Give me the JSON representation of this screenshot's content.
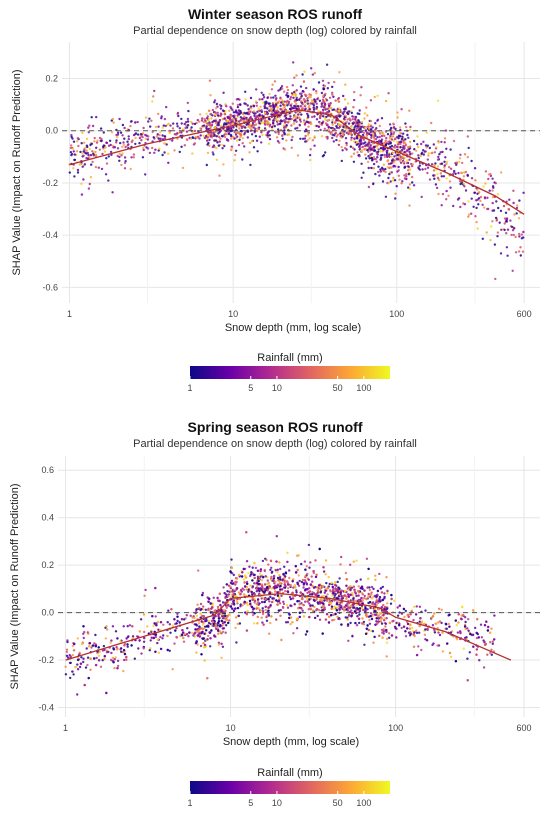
{
  "colors": {
    "palette": [
      "#0d0887",
      "#6a00a8",
      "#b12a90",
      "#e16462",
      "#fca636",
      "#f0f921"
    ],
    "trend": "#b5302f",
    "zero_line": "#555555"
  },
  "chart_data": [
    {
      "type": "scatter",
      "title": "Winter season ROS runoff",
      "subtitle": "Partial dependence on snow depth (log) colored by rainfall",
      "xlabel": "Snow depth (mm, log scale)",
      "ylabel": "SHAP Value (Impact on Runoff Prediction)",
      "x_scale": "log",
      "xlim": [
        0.9,
        750
      ],
      "ylim": [
        -0.66,
        0.34
      ],
      "x_ticks": [
        1,
        10,
        100,
        600
      ],
      "x_tick_labels": [
        "1",
        "10",
        "100",
        "600"
      ],
      "y_ticks": [
        -0.6,
        -0.4,
        -0.2,
        0.0,
        0.2
      ],
      "y_tick_labels": [
        "-0.6",
        "-0.4",
        "-0.2",
        "0.0",
        "0.2"
      ],
      "reference_line": {
        "y": 0.0,
        "style": "dashed"
      },
      "trend_line": {
        "x": [
          1,
          3,
          10,
          25,
          40,
          60,
          100,
          200,
          400,
          600
        ],
        "y": [
          -0.13,
          -0.05,
          0.02,
          0.08,
          0.06,
          -0.02,
          -0.08,
          -0.16,
          -0.25,
          -0.32
        ]
      },
      "scatter_profile": {
        "x": [
          1,
          2,
          5,
          10,
          20,
          30,
          45,
          70,
          100,
          200,
          400,
          600
        ],
        "y_center": [
          -0.1,
          -0.05,
          -0.01,
          0.02,
          0.07,
          0.1,
          0.04,
          -0.05,
          -0.08,
          -0.14,
          -0.3,
          -0.4
        ],
        "spread": [
          0.1,
          0.1,
          0.08,
          0.08,
          0.09,
          0.11,
          0.1,
          0.1,
          0.1,
          0.12,
          0.13,
          0.12
        ]
      },
      "colorbar": {
        "title": "Rainfall (mm)",
        "scale": "log",
        "range": [
          1,
          200
        ],
        "ticks": [
          1,
          5,
          10,
          50,
          100
        ],
        "tick_labels": [
          "1",
          "5",
          "10",
          "50",
          "100"
        ]
      }
    },
    {
      "type": "scatter",
      "title": "Spring season ROS runoff",
      "subtitle": "Partial dependence on snow depth (log) colored by rainfall",
      "xlabel": "Snow depth (mm, log scale)",
      "ylabel": "SHAP Value (Impact on Runoff Prediction)",
      "x_scale": "log",
      "xlim": [
        0.9,
        750
      ],
      "ylim": [
        -0.44,
        0.66
      ],
      "x_ticks": [
        1,
        10,
        100,
        600
      ],
      "x_tick_labels": [
        "1",
        "10",
        "100",
        "600"
      ],
      "y_ticks": [
        -0.4,
        -0.2,
        0.0,
        0.2,
        0.4,
        0.6
      ],
      "y_tick_labels": [
        "-0.4",
        "-0.2",
        "0.0",
        "0.2",
        "0.4",
        "0.6"
      ],
      "reference_line": {
        "y": 0.0,
        "style": "dashed"
      },
      "trend_line": {
        "x": [
          1,
          3,
          8,
          10,
          20,
          40,
          80,
          100,
          200,
          500
        ],
        "y": [
          -0.2,
          -0.1,
          -0.01,
          0.06,
          0.08,
          0.06,
          0.02,
          -0.02,
          -0.08,
          -0.2
        ]
      },
      "scatter_profile": {
        "x": [
          1,
          2,
          4,
          7,
          9,
          10,
          15,
          25,
          40,
          70,
          100,
          200,
          400
        ],
        "y_center": [
          -0.2,
          -0.15,
          -0.08,
          -0.05,
          -0.02,
          0.08,
          0.1,
          0.1,
          0.06,
          0.03,
          -0.03,
          -0.08,
          -0.12
        ],
        "spread": [
          0.1,
          0.1,
          0.1,
          0.1,
          0.1,
          0.1,
          0.12,
          0.12,
          0.1,
          0.09,
          0.1,
          0.1,
          0.08
        ]
      },
      "colorbar": {
        "title": "Rainfall (mm)",
        "scale": "log",
        "range": [
          1,
          200
        ],
        "ticks": [
          1,
          5,
          10,
          50,
          100
        ],
        "tick_labels": [
          "1",
          "5",
          "10",
          "50",
          "100"
        ]
      }
    }
  ]
}
